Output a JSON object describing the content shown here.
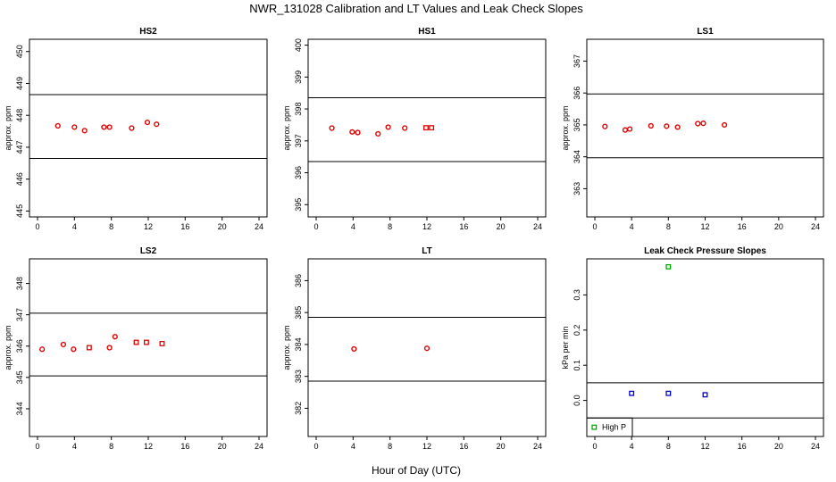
{
  "figure": {
    "title": "NWR_131028  Calibration and LT Values and Leak Check Slopes",
    "xlabel": "Hour of Day (UTC)"
  },
  "chart_data": [
    {
      "id": "hs2",
      "type": "scatter",
      "title": "HS2",
      "ylabel": "approx. ppm",
      "xlim": [
        0,
        24
      ],
      "ylim": [
        444.9,
        450.3
      ],
      "xticks": [
        0,
        4,
        8,
        12,
        16,
        20,
        24
      ],
      "yticks": [
        445,
        446,
        447,
        448,
        449,
        450
      ],
      "hlines": [
        446.65,
        448.65
      ],
      "series": [
        {
          "marker": "circle",
          "color": "#e00000",
          "x": [
            2.2,
            4.0,
            5.1,
            7.2,
            7.8,
            10.2,
            11.9,
            12.9
          ],
          "y": [
            447.67,
            447.63,
            447.52,
            447.63,
            447.63,
            447.6,
            447.78,
            447.72
          ]
        }
      ]
    },
    {
      "id": "hs1",
      "type": "scatter",
      "title": "HS1",
      "ylabel": "approx. ppm",
      "xlim": [
        0,
        24
      ],
      "ylim": [
        394.7,
        400.1
      ],
      "xticks": [
        0,
        4,
        8,
        12,
        16,
        20,
        24
      ],
      "yticks": [
        395,
        396,
        397,
        398,
        399,
        400
      ],
      "hlines": [
        396.35,
        398.35
      ],
      "series": [
        {
          "marker": "circle",
          "color": "#e00000",
          "x": [
            1.7,
            3.9,
            4.5,
            6.7,
            7.8,
            9.6
          ],
          "y": [
            397.4,
            397.28,
            397.26,
            397.22,
            397.43,
            397.4
          ]
        },
        {
          "marker": "square",
          "color": "#e00000",
          "x": [
            11.9,
            12.5
          ],
          "y": [
            397.41,
            397.41
          ]
        }
      ]
    },
    {
      "id": "ls1",
      "type": "scatter",
      "title": "LS1",
      "ylabel": "approx. ppm",
      "xlim": [
        0,
        24
      ],
      "ylim": [
        362.2,
        367.6
      ],
      "xticks": [
        0,
        4,
        8,
        12,
        16,
        20,
        24
      ],
      "yticks": [
        363,
        364,
        365,
        366,
        367
      ],
      "hlines": [
        363.97,
        365.97
      ],
      "series": [
        {
          "marker": "circle",
          "color": "#e00000",
          "x": [
            1.1,
            3.3,
            3.8,
            6.1,
            7.8,
            9.0,
            11.2,
            11.8,
            14.1
          ],
          "y": [
            364.95,
            364.84,
            364.87,
            364.97,
            364.96,
            364.93,
            365.04,
            365.05,
            365.0
          ]
        }
      ]
    },
    {
      "id": "ls2",
      "type": "scatter",
      "title": "LS2",
      "ylabel": "approx. ppm",
      "xlim": [
        0,
        24
      ],
      "ylim": [
        343.2,
        348.7
      ],
      "xticks": [
        0,
        4,
        8,
        12,
        16,
        20,
        24
      ],
      "yticks": [
        344,
        345,
        346,
        347,
        348
      ],
      "hlines": [
        345.05,
        347.05
      ],
      "series": [
        {
          "marker": "circle",
          "color": "#e00000",
          "x": [
            0.5,
            2.8,
            3.9,
            7.8,
            8.4
          ],
          "y": [
            345.9,
            346.05,
            345.9,
            345.95,
            346.3
          ]
        },
        {
          "marker": "square",
          "color": "#e00000",
          "x": [
            5.6,
            10.7,
            11.8,
            13.5
          ],
          "y": [
            345.95,
            346.12,
            346.12,
            346.08
          ]
        }
      ]
    },
    {
      "id": "lt",
      "type": "scatter",
      "title": "LT",
      "ylabel": "approx. ppm",
      "xlim": [
        0,
        24
      ],
      "ylim": [
        381.2,
        386.6
      ],
      "xticks": [
        0,
        4,
        8,
        12,
        16,
        20,
        24
      ],
      "yticks": [
        382,
        383,
        384,
        385,
        386
      ],
      "hlines": [
        382.85,
        384.85
      ],
      "series": [
        {
          "marker": "circle",
          "color": "#e00000",
          "x": [
            4.1,
            12.0
          ],
          "y": [
            383.86,
            383.88
          ]
        }
      ]
    },
    {
      "id": "leak",
      "type": "scatter",
      "title": "Leak Check Pressure Slopes",
      "ylabel": "kPa per min",
      "xlim": [
        0,
        24
      ],
      "ylim": [
        -0.095,
        0.395
      ],
      "xticks": [
        0,
        4,
        8,
        12,
        16,
        20,
        24
      ],
      "yticks": [
        0.0,
        0.1,
        0.2,
        0.3
      ],
      "ytick_labels": [
        "0.0",
        "0.1",
        "0.2",
        "0.3"
      ],
      "hlines": [
        0.05,
        -0.05
      ],
      "series": [
        {
          "marker": "square",
          "color": "#00aa00",
          "x": [
            8.0
          ],
          "y": [
            0.38
          ]
        },
        {
          "marker": "square",
          "color": "#0000cc",
          "x": [
            4.0,
            8.0,
            12.0
          ],
          "y": [
            0.02,
            0.02,
            0.016
          ]
        }
      ],
      "legend": {
        "label": "High P",
        "color": "#00aa00",
        "marker": "square",
        "position": "bottom-left"
      }
    }
  ]
}
